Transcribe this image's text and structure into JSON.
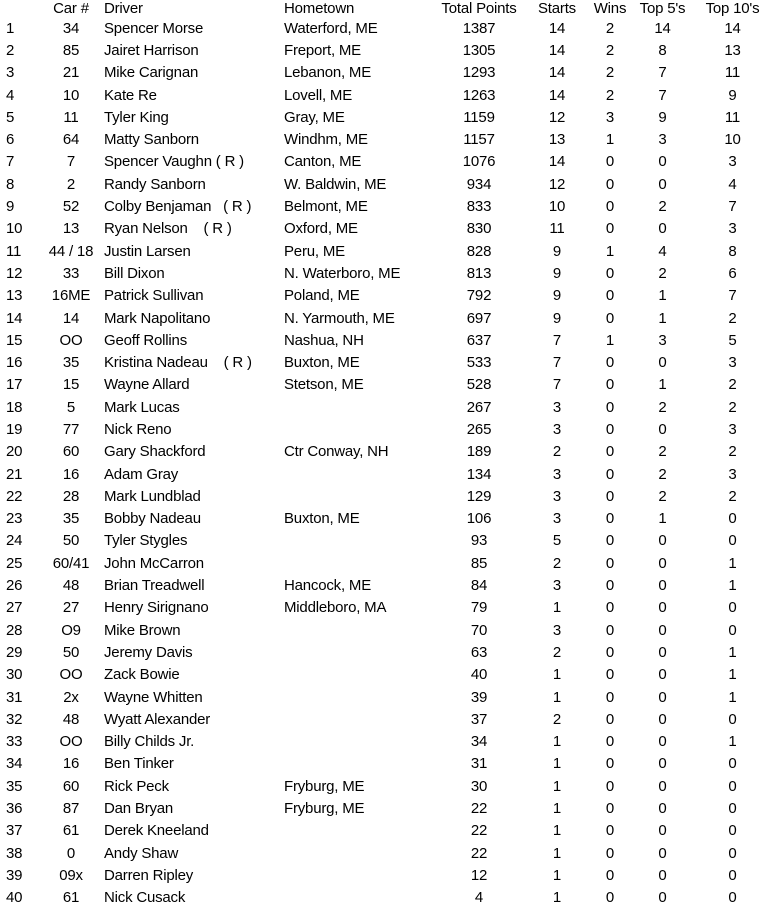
{
  "chart_data": {
    "type": "table",
    "headers": [
      "",
      "Car #",
      "Driver",
      "Hometown",
      "Total Points",
      "Starts",
      "Wins",
      "Top 5's",
      "Top 10's"
    ],
    "rows": [
      [
        "1",
        "34",
        "Spencer Morse",
        "Waterford, ME",
        "1387",
        "14",
        "2",
        "14",
        "14"
      ],
      [
        "2",
        "85",
        "Jairet Harrison",
        "Freport, ME",
        "1305",
        "14",
        "2",
        "8",
        "13"
      ],
      [
        "3",
        "21",
        "Mike Carignan",
        "Lebanon, ME",
        "1293",
        "14",
        "2",
        "7",
        "11"
      ],
      [
        "4",
        "10",
        "Kate Re",
        "Lovell, ME",
        "1263",
        "14",
        "2",
        "7",
        "9"
      ],
      [
        "5",
        "11",
        "Tyler King",
        "Gray, ME",
        "1159",
        "12",
        "3",
        "9",
        "11"
      ],
      [
        "6",
        "64",
        "Matty Sanborn",
        "Windhm, ME",
        "1157",
        "13",
        "1",
        "3",
        "10"
      ],
      [
        "7",
        "7",
        "Spencer Vaughn ( R )",
        "Canton, ME",
        "1076",
        "14",
        "0",
        "0",
        "3"
      ],
      [
        "8",
        "2",
        "Randy Sanborn",
        "W. Baldwin, ME",
        "934",
        "12",
        "0",
        "0",
        "4"
      ],
      [
        "9",
        "52",
        "Colby Benjaman   ( R )",
        "Belmont, ME",
        "833",
        "10",
        "0",
        "2",
        "7"
      ],
      [
        "10",
        "13",
        "Ryan Nelson    ( R )",
        "Oxford, ME",
        "830",
        "11",
        "0",
        "0",
        "3"
      ],
      [
        "11",
        "44 / 18",
        "Justin Larsen",
        "Peru, ME",
        "828",
        "9",
        "1",
        "4",
        "8"
      ],
      [
        "12",
        "33",
        "Bill Dixon",
        "N. Waterboro, ME",
        "813",
        "9",
        "0",
        "2",
        "6"
      ],
      [
        "13",
        "16ME",
        "Patrick Sullivan",
        "Poland, ME",
        "792",
        "9",
        "0",
        "1",
        "7"
      ],
      [
        "14",
        "14",
        "Mark Napolitano",
        "N. Yarmouth, ME",
        "697",
        "9",
        "0",
        "1",
        "2"
      ],
      [
        "15",
        "OO",
        "Geoff Rollins",
        "Nashua, NH",
        "637",
        "7",
        "1",
        "3",
        "5"
      ],
      [
        "16",
        "35",
        "Kristina Nadeau    ( R )",
        "Buxton, ME",
        "533",
        "7",
        "0",
        "0",
        "3"
      ],
      [
        "17",
        "15",
        "Wayne Allard",
        "Stetson, ME",
        "528",
        "7",
        "0",
        "1",
        "2"
      ],
      [
        "18",
        "5",
        "Mark Lucas",
        "",
        "267",
        "3",
        "0",
        "2",
        "2"
      ],
      [
        "19",
        "77",
        "Nick Reno",
        "",
        "265",
        "3",
        "0",
        "0",
        "3"
      ],
      [
        "20",
        "60",
        "Gary Shackford",
        "Ctr Conway, NH",
        "189",
        "2",
        "0",
        "2",
        "2"
      ],
      [
        "21",
        "16",
        "Adam Gray",
        "",
        "134",
        "3",
        "0",
        "2",
        "3"
      ],
      [
        "22",
        "28",
        "Mark Lundblad",
        "",
        "129",
        "3",
        "0",
        "2",
        "2"
      ],
      [
        "23",
        "35",
        "Bobby Nadeau",
        "Buxton, ME",
        "106",
        "3",
        "0",
        "1",
        "0"
      ],
      [
        "24",
        "50",
        "Tyler Stygles",
        "",
        "93",
        "5",
        "0",
        "0",
        "0"
      ],
      [
        "25",
        "60/41",
        "John McCarron",
        "",
        "85",
        "2",
        "0",
        "0",
        "1"
      ],
      [
        "26",
        "48",
        "Brian Treadwell",
        "Hancock, ME",
        "84",
        "3",
        "0",
        "0",
        "1"
      ],
      [
        "27",
        "27",
        "Henry Sirignano",
        "Middleboro, MA",
        "79",
        "1",
        "0",
        "0",
        "0"
      ],
      [
        "28",
        "O9",
        "Mike Brown",
        "",
        "70",
        "3",
        "0",
        "0",
        "0"
      ],
      [
        "29",
        "50",
        "Jeremy Davis",
        "",
        "63",
        "2",
        "0",
        "0",
        "1"
      ],
      [
        "30",
        "OO",
        "Zack Bowie",
        "",
        "40",
        "1",
        "0",
        "0",
        "1"
      ],
      [
        "31",
        "2x",
        "Wayne Whitten",
        "",
        "39",
        "1",
        "0",
        "0",
        "1"
      ],
      [
        "32",
        "48",
        "Wyatt Alexander",
        "",
        "37",
        "2",
        "0",
        "0",
        "0"
      ],
      [
        "33",
        "OO",
        "Billy Childs Jr.",
        "",
        "34",
        "1",
        "0",
        "0",
        "1"
      ],
      [
        "34",
        "16",
        "Ben Tinker",
        "",
        "31",
        "1",
        "0",
        "0",
        "0"
      ],
      [
        "35",
        "60",
        "Rick Peck",
        "Fryburg, ME",
        "30",
        "1",
        "0",
        "0",
        "0"
      ],
      [
        "36",
        "87",
        "Dan Bryan",
        "Fryburg, ME",
        "22",
        "1",
        "0",
        "0",
        "0"
      ],
      [
        "37",
        "61",
        "Derek Kneeland",
        "",
        "22",
        "1",
        "0",
        "0",
        "0"
      ],
      [
        "38",
        "0",
        "Andy Shaw",
        "",
        "22",
        "1",
        "0",
        "0",
        "0"
      ],
      [
        "39",
        "09x",
        "Darren Ripley",
        "",
        "12",
        "1",
        "0",
        "0",
        "0"
      ],
      [
        "40",
        "61",
        "Nick Cusack",
        "",
        "4",
        "1",
        "0",
        "0",
        "0"
      ]
    ],
    "layout": {
      "grid": false,
      "background": "#ffffff",
      "text_color": "#000000"
    }
  }
}
